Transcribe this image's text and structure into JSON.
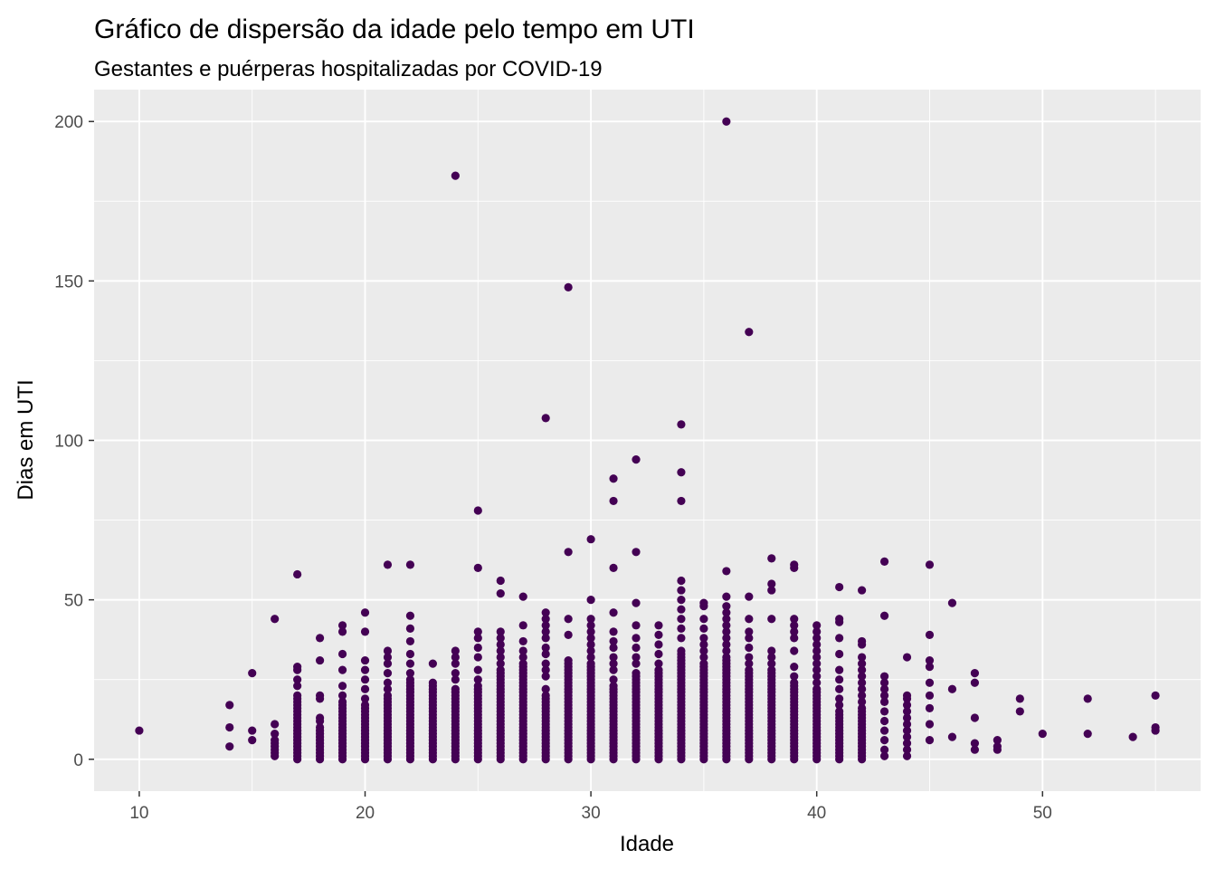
{
  "chart_data": {
    "type": "scatter",
    "title": "Gráfico de dispersão da idade pelo tempo em UTI",
    "subtitle": "Gestantes e puérperas hospitalizadas por COVID-19",
    "xlabel": "Idade",
    "ylabel": "Dias em UTI",
    "xlim": [
      8,
      57
    ],
    "ylim": [
      -10,
      210
    ],
    "x_ticks": [
      10,
      20,
      30,
      40,
      50
    ],
    "y_ticks": [
      0,
      50,
      100,
      150,
      200
    ],
    "x_tick_labels": [
      "10",
      "20",
      "30",
      "40",
      "50"
    ],
    "y_tick_labels": [
      "0",
      "50",
      "100",
      "150",
      "200"
    ],
    "grid": true,
    "colors": {
      "point": "#440154",
      "panel": "#ebebeb",
      "grid": "#ffffff"
    },
    "points_by_age": [
      {
        "x": 10,
        "y": [
          9
        ]
      },
      {
        "x": 14,
        "y": [
          4,
          10,
          17
        ]
      },
      {
        "x": 15,
        "y": [
          6,
          9,
          27
        ]
      },
      {
        "x": 16,
        "y": [
          1,
          2,
          3,
          4,
          5,
          6,
          8,
          11,
          44
        ]
      },
      {
        "x": 17,
        "y": [
          0,
          1,
          2,
          3,
          4,
          5,
          6,
          7,
          8,
          9,
          10,
          11,
          12,
          13,
          14,
          15,
          16,
          17,
          18,
          19,
          20,
          23,
          25,
          28,
          29,
          58
        ]
      },
      {
        "x": 18,
        "y": [
          0,
          1,
          2,
          3,
          4,
          5,
          6,
          7,
          8,
          9,
          10,
          12,
          13,
          19,
          20,
          31,
          38
        ]
      },
      {
        "x": 19,
        "y": [
          0,
          1,
          2,
          3,
          4,
          5,
          6,
          7,
          8,
          9,
          10,
          11,
          12,
          13,
          14,
          15,
          16,
          17,
          18,
          20,
          23,
          28,
          33,
          40,
          42
        ]
      },
      {
        "x": 20,
        "y": [
          0,
          1,
          2,
          3,
          4,
          5,
          6,
          7,
          8,
          9,
          10,
          11,
          12,
          13,
          14,
          15,
          16,
          17,
          19,
          22,
          25,
          28,
          31,
          40,
          46
        ]
      },
      {
        "x": 21,
        "y": [
          0,
          1,
          2,
          3,
          4,
          5,
          6,
          7,
          8,
          9,
          10,
          11,
          12,
          13,
          14,
          15,
          16,
          17,
          18,
          19,
          20,
          22,
          24,
          27,
          30,
          32,
          34,
          61
        ]
      },
      {
        "x": 22,
        "y": [
          0,
          1,
          2,
          3,
          4,
          5,
          6,
          7,
          8,
          9,
          10,
          11,
          12,
          13,
          14,
          15,
          16,
          17,
          18,
          19,
          20,
          21,
          22,
          23,
          24,
          25,
          27,
          30,
          33,
          37,
          41,
          45,
          61
        ]
      },
      {
        "x": 23,
        "y": [
          0,
          1,
          2,
          3,
          4,
          5,
          6,
          7,
          8,
          9,
          10,
          11,
          12,
          13,
          14,
          15,
          16,
          17,
          18,
          19,
          20,
          21,
          22,
          23,
          24,
          30
        ]
      },
      {
        "x": 24,
        "y": [
          0,
          1,
          2,
          3,
          4,
          5,
          6,
          7,
          8,
          9,
          10,
          11,
          12,
          13,
          14,
          15,
          16,
          17,
          18,
          19,
          20,
          21,
          22,
          25,
          27,
          30,
          32,
          34,
          183
        ]
      },
      {
        "x": 25,
        "y": [
          0,
          1,
          2,
          3,
          4,
          5,
          6,
          7,
          8,
          9,
          10,
          11,
          12,
          13,
          14,
          15,
          16,
          17,
          18,
          19,
          20,
          21,
          22,
          23,
          25,
          28,
          32,
          35,
          38,
          40,
          60,
          78
        ]
      },
      {
        "x": 26,
        "y": [
          0,
          1,
          2,
          3,
          4,
          5,
          6,
          7,
          8,
          9,
          10,
          11,
          12,
          13,
          14,
          15,
          16,
          17,
          18,
          19,
          20,
          21,
          22,
          23,
          24,
          25,
          26,
          27,
          28,
          30,
          32,
          34,
          36,
          38,
          40,
          52,
          56
        ]
      },
      {
        "x": 27,
        "y": [
          0,
          1,
          2,
          3,
          4,
          5,
          6,
          7,
          8,
          9,
          10,
          11,
          12,
          13,
          14,
          15,
          16,
          17,
          18,
          19,
          20,
          21,
          22,
          23,
          24,
          25,
          26,
          27,
          28,
          29,
          30,
          32,
          34,
          37,
          42,
          51
        ]
      },
      {
        "x": 28,
        "y": [
          0,
          1,
          2,
          3,
          4,
          5,
          6,
          7,
          8,
          9,
          10,
          11,
          12,
          13,
          14,
          15,
          16,
          17,
          18,
          19,
          20,
          22,
          26,
          28,
          30,
          33,
          35,
          38,
          40,
          42,
          44,
          46,
          107
        ]
      },
      {
        "x": 29,
        "y": [
          0,
          1,
          2,
          3,
          4,
          5,
          6,
          7,
          8,
          9,
          10,
          11,
          12,
          13,
          14,
          15,
          16,
          17,
          18,
          19,
          20,
          21,
          22,
          23,
          24,
          25,
          26,
          27,
          28,
          29,
          30,
          31,
          39,
          44,
          65,
          148
        ]
      },
      {
        "x": 30,
        "y": [
          0,
          1,
          2,
          3,
          4,
          5,
          6,
          7,
          8,
          9,
          10,
          11,
          12,
          13,
          14,
          15,
          16,
          17,
          18,
          19,
          20,
          21,
          22,
          23,
          24,
          25,
          26,
          27,
          28,
          29,
          30,
          32,
          34,
          36,
          38,
          40,
          42,
          44,
          50,
          69
        ]
      },
      {
        "x": 31,
        "y": [
          0,
          1,
          2,
          3,
          4,
          5,
          6,
          7,
          8,
          9,
          10,
          11,
          12,
          13,
          14,
          15,
          16,
          17,
          18,
          19,
          20,
          21,
          22,
          23,
          25,
          28,
          30,
          32,
          35,
          37,
          40,
          46,
          60,
          81,
          88
        ]
      },
      {
        "x": 32,
        "y": [
          0,
          1,
          2,
          3,
          4,
          5,
          6,
          7,
          8,
          9,
          10,
          11,
          12,
          13,
          14,
          15,
          16,
          17,
          18,
          19,
          20,
          21,
          22,
          23,
          24,
          25,
          26,
          27,
          30,
          32,
          35,
          38,
          42,
          49,
          65,
          94
        ]
      },
      {
        "x": 33,
        "y": [
          0,
          1,
          2,
          3,
          4,
          5,
          6,
          7,
          8,
          9,
          10,
          11,
          12,
          13,
          14,
          15,
          16,
          17,
          18,
          19,
          20,
          21,
          22,
          23,
          24,
          25,
          26,
          27,
          28,
          30,
          33,
          36,
          39,
          42
        ]
      },
      {
        "x": 34,
        "y": [
          0,
          1,
          2,
          3,
          4,
          5,
          6,
          7,
          8,
          9,
          10,
          11,
          12,
          13,
          14,
          15,
          16,
          17,
          18,
          19,
          20,
          21,
          22,
          23,
          24,
          25,
          26,
          27,
          28,
          29,
          30,
          31,
          32,
          33,
          34,
          38,
          41,
          44,
          47,
          50,
          53,
          56,
          81,
          90,
          105
        ]
      },
      {
        "x": 35,
        "y": [
          0,
          1,
          2,
          3,
          4,
          5,
          6,
          7,
          8,
          9,
          10,
          11,
          12,
          13,
          14,
          15,
          16,
          17,
          18,
          19,
          20,
          21,
          22,
          23,
          24,
          25,
          26,
          27,
          28,
          29,
          30,
          32,
          34,
          36,
          38,
          41,
          44,
          48,
          49
        ]
      },
      {
        "x": 36,
        "y": [
          0,
          1,
          2,
          3,
          4,
          5,
          6,
          7,
          8,
          9,
          10,
          11,
          12,
          13,
          14,
          15,
          16,
          17,
          18,
          19,
          20,
          21,
          22,
          23,
          24,
          25,
          26,
          27,
          28,
          29,
          30,
          31,
          32,
          34,
          36,
          38,
          40,
          42,
          44,
          46,
          48,
          51,
          59,
          200
        ]
      },
      {
        "x": 37,
        "y": [
          0,
          1,
          2,
          3,
          4,
          5,
          6,
          7,
          8,
          9,
          10,
          11,
          12,
          13,
          14,
          15,
          16,
          17,
          18,
          19,
          20,
          21,
          22,
          23,
          24,
          25,
          26,
          27,
          28,
          30,
          32,
          35,
          38,
          40,
          44,
          51,
          134
        ]
      },
      {
        "x": 38,
        "y": [
          0,
          1,
          2,
          3,
          4,
          5,
          6,
          7,
          8,
          9,
          10,
          11,
          12,
          13,
          14,
          15,
          16,
          17,
          18,
          19,
          20,
          21,
          22,
          23,
          24,
          25,
          26,
          27,
          28,
          30,
          32,
          34,
          44,
          53,
          55,
          63
        ]
      },
      {
        "x": 39,
        "y": [
          0,
          1,
          2,
          3,
          4,
          5,
          6,
          7,
          8,
          9,
          10,
          11,
          12,
          13,
          14,
          15,
          16,
          17,
          18,
          19,
          20,
          21,
          22,
          23,
          24,
          26,
          29,
          34,
          38,
          40,
          42,
          44,
          60,
          61
        ]
      },
      {
        "x": 40,
        "y": [
          0,
          1,
          2,
          3,
          4,
          5,
          6,
          7,
          8,
          9,
          10,
          11,
          12,
          13,
          14,
          15,
          16,
          17,
          18,
          19,
          20,
          21,
          22,
          24,
          26,
          28,
          30,
          32,
          34,
          36,
          38,
          40,
          42
        ]
      },
      {
        "x": 41,
        "y": [
          0,
          1,
          2,
          3,
          4,
          5,
          6,
          7,
          8,
          9,
          10,
          11,
          12,
          13,
          14,
          15,
          17,
          19,
          22,
          25,
          28,
          33,
          38,
          43,
          44,
          54
        ]
      },
      {
        "x": 42,
        "y": [
          0,
          1,
          2,
          3,
          4,
          5,
          6,
          7,
          8,
          9,
          10,
          11,
          12,
          13,
          14,
          15,
          16,
          18,
          20,
          22,
          24,
          26,
          28,
          30,
          32,
          36,
          37,
          53
        ]
      },
      {
        "x": 43,
        "y": [
          1,
          3,
          6,
          9,
          12,
          15,
          18,
          20,
          22,
          24,
          26,
          45,
          62
        ]
      },
      {
        "x": 44,
        "y": [
          1,
          3,
          5,
          7,
          9,
          11,
          13,
          15,
          17,
          19,
          20,
          32
        ]
      },
      {
        "x": 45,
        "y": [
          6,
          11,
          16,
          20,
          24,
          29,
          31,
          39,
          61
        ]
      },
      {
        "x": 46,
        "y": [
          7,
          22,
          49
        ]
      },
      {
        "x": 47,
        "y": [
          3,
          5,
          13,
          24,
          27
        ]
      },
      {
        "x": 48,
        "y": [
          3,
          4,
          6
        ]
      },
      {
        "x": 49,
        "y": [
          15,
          19
        ]
      },
      {
        "x": 50,
        "y": [
          8
        ]
      },
      {
        "x": 52,
        "y": [
          8,
          19
        ]
      },
      {
        "x": 54,
        "y": [
          7
        ]
      },
      {
        "x": 55,
        "y": [
          9,
          10,
          20
        ]
      }
    ]
  }
}
